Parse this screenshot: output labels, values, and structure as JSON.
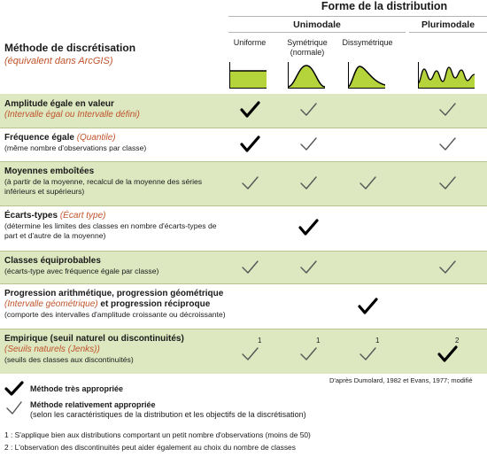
{
  "header": {
    "title": "Forme de la distribution",
    "unimodale": "Unimodale",
    "plurimodale": "Plurimodale",
    "method_title": "Méthode de discrétisation",
    "method_subtitle": "(équivalent dans ArcGIS)",
    "columns": [
      {
        "label": "Uniforme"
      },
      {
        "label": "Symétrique",
        "label2": "(normale)"
      },
      {
        "label": "Dissymétrique"
      },
      {
        "label": ""
      }
    ]
  },
  "rows": [
    {
      "title": "Amplitude égale en valeur",
      "arcgis": "(Intervalle égal ou Intervalle défini)",
      "desc": "",
      "checks": [
        "strong",
        "light",
        "",
        "light"
      ],
      "sup": [
        "",
        "",
        "",
        ""
      ]
    },
    {
      "title": "Fréquence égale ",
      "arcgis": "(Quantile)",
      "desc": "(même nombre d'observations par classe)",
      "checks": [
        "strong",
        "light",
        "",
        "light"
      ],
      "sup": [
        "",
        "",
        "",
        ""
      ]
    },
    {
      "title": "Moyennes emboîtées",
      "arcgis": "",
      "desc": "(à partir de la moyenne, recalcul de la moyenne des séries inférieurs et supérieurs)",
      "checks": [
        "light",
        "light",
        "light",
        "light"
      ],
      "sup": [
        "",
        "",
        "",
        ""
      ]
    },
    {
      "title": "Écarts-types ",
      "arcgis": "(Écart type)",
      "desc": "(détermine les limites des classes en nombre d'écarts-types de part et d'autre de la moyenne)",
      "checks": [
        "",
        "strong",
        "",
        ""
      ],
      "sup": [
        "",
        "",
        "",
        ""
      ]
    },
    {
      "title": "Classes équiprobables",
      "arcgis": "",
      "desc": "(écarts-type avec fréquence égale par classe)",
      "checks": [
        "light",
        "light",
        "",
        "light"
      ],
      "sup": [
        "",
        "",
        "",
        ""
      ]
    },
    {
      "title": "Progression arithmétique, progression géométrique",
      "arcgis": "(Intervalle géométrique)",
      "title_after": " et progression réciproque",
      "desc": "(comporte des intervalles d'amplitude croissante ou décroissante)",
      "checks": [
        "",
        "",
        "strong",
        ""
      ],
      "sup": [
        "",
        "",
        "",
        ""
      ]
    },
    {
      "title": "Empirique (seuil naturel ou discontinuités)",
      "arcgis": "(Seuils naturels (Jenks))",
      "desc": "(seuils des classes aux discontinuités)",
      "checks": [
        "light",
        "light",
        "light",
        "strong"
      ],
      "sup": [
        "1",
        "1",
        "1",
        "2"
      ]
    }
  ],
  "credit": "D'après Dumolard, 1982 et Evans, 1977; modifié",
  "legend": {
    "strong": "Méthode très appropriée",
    "light": "Méthode relativement appropriée",
    "light_desc": "(selon les caractéristiques de la distribution et les objectifs de la discrétisation)"
  },
  "notes": [
    "1 : S'applique bien aux distributions comportant un petit nombre d'observations (moins de 50)",
    "2 : L'observation des discontinuités peut aider également au choix du nombre de classes"
  ],
  "colors": {
    "green_row": "#dde7c0",
    "curve_fill": "#b5d33a",
    "orange_text": "#c0532b"
  }
}
